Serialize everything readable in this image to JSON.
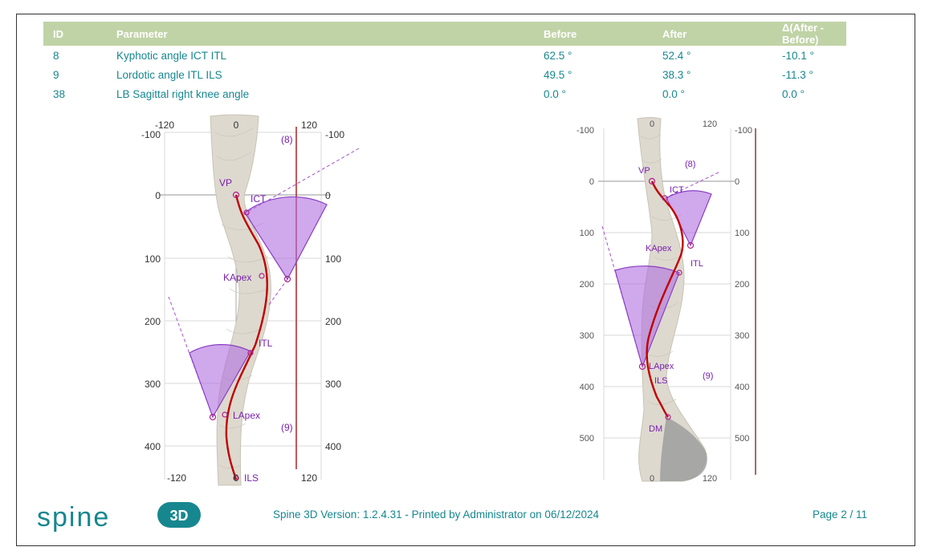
{
  "table": {
    "headers": {
      "id": "ID",
      "parameter": "Parameter",
      "before": "Before",
      "after": "After",
      "delta": "Δ(After - Before)"
    },
    "rows": [
      {
        "id": "8",
        "parameter": "Kyphotic angle ICT ITL",
        "before": "62.5 °",
        "after": "52.4 °",
        "delta": "-10.1 °"
      },
      {
        "id": "9",
        "parameter": "Lordotic angle ITL ILS",
        "before": "49.5 °",
        "after": "38.3 °",
        "delta": "-11.3 °"
      },
      {
        "id": "38",
        "parameter": "LB Sagittal right knee angle",
        "before": "0.0 °",
        "after": "0.0 °",
        "delta": "0.0 °"
      }
    ]
  },
  "figure_before": {
    "axis_left": [
      "-100",
      "0",
      "100",
      "200",
      "300",
      "400"
    ],
    "axis_right": [
      "-100",
      "0",
      "100",
      "200",
      "300",
      "400"
    ],
    "axis_top": [
      "-120",
      "0",
      "120"
    ],
    "axis_bottom": [
      "-120",
      "0",
      "120"
    ],
    "labels": {
      "vp": "VP",
      "ict": "ICT",
      "kapex": "KApex",
      "itl": "ITL",
      "lapex": "LApex",
      "ils": "ILS",
      "angle8": "(8)",
      "angle9": "(9)"
    }
  },
  "figure_after": {
    "axis_left": [
      "-100",
      "0",
      "100",
      "200",
      "300",
      "400",
      "500"
    ],
    "axis_right": [
      "-100",
      "0",
      "100",
      "200",
      "300",
      "400",
      "500"
    ],
    "axis_top": [
      "0",
      "120"
    ],
    "axis_bottom": [
      "0",
      "120"
    ],
    "labels": {
      "vp": "VP",
      "ict": "ICT",
      "kapex": "KApex",
      "itl": "ITL",
      "lapex": "LApex",
      "ils": "ILS",
      "dm": "DM",
      "angle8": "(8)",
      "angle9": "(9)"
    }
  },
  "footer": {
    "logo_text": "spine",
    "logo_badge": "3D",
    "version": "Spine 3D Version: 1.2.4.31 - Printed by Administrator on 06/12/2024",
    "page": "Page 2 / 11"
  },
  "colors": {
    "header_bg": "#c0d3a6",
    "text_teal": "#17878f",
    "spine_red": "#c00000",
    "angle_fill": "#b06ee0",
    "label_purple": "#7a1fb0"
  }
}
